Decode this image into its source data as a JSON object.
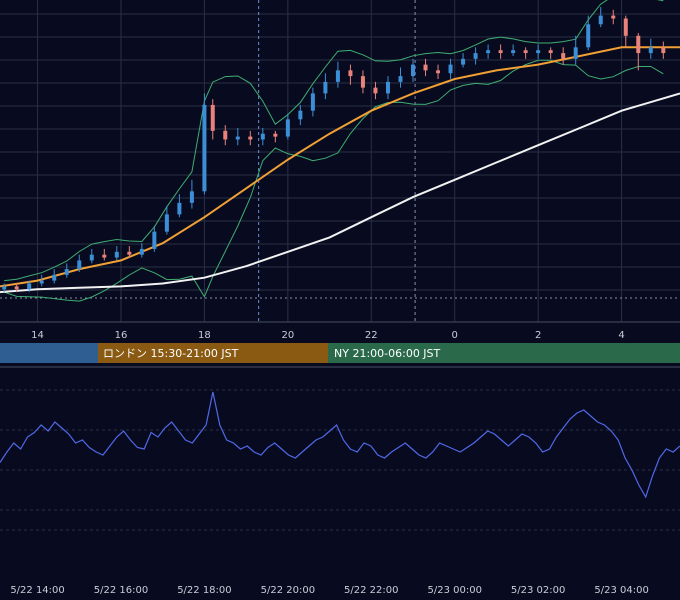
{
  "colors": {
    "background": "#080b1f",
    "grid": "#2a2f45",
    "up_candle": "#3c8fd6",
    "down_candle": "#e8827a",
    "ma_fast": "#f0a035",
    "ma_slow": "#f2f2f2",
    "bollinger": "#3fae72",
    "oscillator": "#5068e8",
    "session_tokyo": "#2f5f92",
    "session_london": "#8a5a12",
    "session_ny": "#2a6a4a"
  },
  "sessions": [
    {
      "label": ""
    },
    {
      "label": "ロンドン 15:30-21:00 JST"
    },
    {
      "label": "NY 21:00-06:00 JST"
    }
  ],
  "chart_data": [
    {
      "type": "candlestick",
      "x_tick_labels": [
        "14",
        "16",
        "18",
        "20",
        "22",
        "0",
        "2",
        "4"
      ],
      "x_hours": [
        14,
        16,
        18,
        20,
        22,
        24,
        26,
        28
      ],
      "x_range_hours": [
        13.1,
        29.4
      ],
      "y_range": [
        0,
        100
      ],
      "grid": true,
      "candles": [
        {
          "h": 13.2,
          "o": 2,
          "c": 3,
          "hi": 4,
          "lo": 1
        },
        {
          "h": 13.5,
          "o": 3,
          "c": 2,
          "hi": 4,
          "lo": 1
        },
        {
          "h": 13.8,
          "o": 2,
          "c": 4,
          "hi": 5,
          "lo": 1
        },
        {
          "h": 14.1,
          "o": 4,
          "c": 5,
          "hi": 7,
          "lo": 3
        },
        {
          "h": 14.4,
          "o": 5,
          "c": 7,
          "hi": 9,
          "lo": 4
        },
        {
          "h": 14.7,
          "o": 7,
          "c": 9,
          "hi": 11,
          "lo": 6
        },
        {
          "h": 15.0,
          "o": 9,
          "c": 12,
          "hi": 14,
          "lo": 8
        },
        {
          "h": 15.3,
          "o": 12,
          "c": 14,
          "hi": 16,
          "lo": 11
        },
        {
          "h": 15.6,
          "o": 14,
          "c": 13,
          "hi": 16,
          "lo": 12
        },
        {
          "h": 15.9,
          "o": 13,
          "c": 15,
          "hi": 17,
          "lo": 12
        },
        {
          "h": 16.2,
          "o": 15,
          "c": 14,
          "hi": 17,
          "lo": 13
        },
        {
          "h": 16.5,
          "o": 14,
          "c": 16,
          "hi": 18,
          "lo": 13
        },
        {
          "h": 16.8,
          "o": 16,
          "c": 22,
          "hi": 24,
          "lo": 15
        },
        {
          "h": 17.1,
          "o": 22,
          "c": 28,
          "hi": 31,
          "lo": 21
        },
        {
          "h": 17.4,
          "o": 28,
          "c": 32,
          "hi": 35,
          "lo": 27
        },
        {
          "h": 17.7,
          "o": 32,
          "c": 36,
          "hi": 40,
          "lo": 30
        },
        {
          "h": 18.0,
          "o": 36,
          "c": 66,
          "hi": 70,
          "lo": 35
        },
        {
          "h": 18.2,
          "o": 66,
          "c": 57,
          "hi": 68,
          "lo": 54
        },
        {
          "h": 18.5,
          "o": 57,
          "c": 54,
          "hi": 59,
          "lo": 52
        },
        {
          "h": 18.8,
          "o": 54,
          "c": 55,
          "hi": 58,
          "lo": 52
        },
        {
          "h": 19.1,
          "o": 55,
          "c": 54,
          "hi": 57,
          "lo": 52
        },
        {
          "h": 19.4,
          "o": 54,
          "c": 56,
          "hi": 58,
          "lo": 52
        },
        {
          "h": 19.7,
          "o": 56,
          "c": 55,
          "hi": 57,
          "lo": 53
        },
        {
          "h": 20.0,
          "o": 55,
          "c": 61,
          "hi": 63,
          "lo": 54
        },
        {
          "h": 20.3,
          "o": 61,
          "c": 64,
          "hi": 66,
          "lo": 59
        },
        {
          "h": 20.6,
          "o": 64,
          "c": 70,
          "hi": 72,
          "lo": 62
        },
        {
          "h": 20.9,
          "o": 70,
          "c": 74,
          "hi": 77,
          "lo": 68
        },
        {
          "h": 21.2,
          "o": 74,
          "c": 78,
          "hi": 81,
          "lo": 72
        },
        {
          "h": 21.5,
          "o": 78,
          "c": 76,
          "hi": 80,
          "lo": 73
        },
        {
          "h": 21.8,
          "o": 76,
          "c": 72,
          "hi": 78,
          "lo": 70
        },
        {
          "h": 22.1,
          "o": 72,
          "c": 70,
          "hi": 74,
          "lo": 68
        },
        {
          "h": 22.4,
          "o": 70,
          "c": 74,
          "hi": 76,
          "lo": 68
        },
        {
          "h": 22.7,
          "o": 74,
          "c": 76,
          "hi": 79,
          "lo": 72
        },
        {
          "h": 23.0,
          "o": 76,
          "c": 80,
          "hi": 82,
          "lo": 74
        },
        {
          "h": 23.3,
          "o": 80,
          "c": 78,
          "hi": 82,
          "lo": 76
        },
        {
          "h": 23.6,
          "o": 78,
          "c": 77,
          "hi": 80,
          "lo": 75
        },
        {
          "h": 23.9,
          "o": 77,
          "c": 80,
          "hi": 82,
          "lo": 75
        },
        {
          "h": 24.2,
          "o": 80,
          "c": 82,
          "hi": 84,
          "lo": 79
        },
        {
          "h": 24.5,
          "o": 82,
          "c": 84,
          "hi": 86,
          "lo": 80
        },
        {
          "h": 24.8,
          "o": 84,
          "c": 85,
          "hi": 87,
          "lo": 82
        },
        {
          "h": 25.1,
          "o": 85,
          "c": 84,
          "hi": 87,
          "lo": 82
        },
        {
          "h": 25.4,
          "o": 84,
          "c": 85,
          "hi": 87,
          "lo": 83
        },
        {
          "h": 25.7,
          "o": 85,
          "c": 84,
          "hi": 86,
          "lo": 82
        },
        {
          "h": 26.0,
          "o": 84,
          "c": 85,
          "hi": 87,
          "lo": 82
        },
        {
          "h": 26.3,
          "o": 85,
          "c": 84,
          "hi": 86,
          "lo": 82
        },
        {
          "h": 26.6,
          "o": 84,
          "c": 82,
          "hi": 86,
          "lo": 80
        },
        {
          "h": 26.9,
          "o": 82,
          "c": 86,
          "hi": 90,
          "lo": 80
        },
        {
          "h": 27.2,
          "o": 86,
          "c": 94,
          "hi": 97,
          "lo": 85
        },
        {
          "h": 27.5,
          "o": 94,
          "c": 97,
          "hi": 100,
          "lo": 93
        },
        {
          "h": 27.8,
          "o": 97,
          "c": 96,
          "hi": 99,
          "lo": 94
        },
        {
          "h": 28.1,
          "o": 96,
          "c": 90,
          "hi": 97,
          "lo": 86
        },
        {
          "h": 28.4,
          "o": 90,
          "c": 84,
          "hi": 91,
          "lo": 78
        },
        {
          "h": 28.7,
          "o": 84,
          "c": 86,
          "hi": 89,
          "lo": 82
        },
        {
          "h": 29.0,
          "o": 86,
          "c": 84,
          "hi": 88,
          "lo": 82
        }
      ],
      "ma_fast": [
        [
          13.1,
          3
        ],
        [
          14,
          5
        ],
        [
          15,
          9
        ],
        [
          16,
          12
        ],
        [
          17,
          18
        ],
        [
          18,
          27
        ],
        [
          19,
          37
        ],
        [
          20,
          47
        ],
        [
          21,
          56
        ],
        [
          22,
          64
        ],
        [
          23,
          70
        ],
        [
          24,
          75
        ],
        [
          25,
          78
        ],
        [
          26,
          80
        ],
        [
          27,
          83
        ],
        [
          28,
          86
        ],
        [
          29.4,
          86
        ]
      ],
      "ma_slow": [
        [
          13.1,
          1
        ],
        [
          14,
          2
        ],
        [
          15,
          2.5
        ],
        [
          16,
          3
        ],
        [
          17,
          4
        ],
        [
          18,
          6
        ],
        [
          19,
          10
        ],
        [
          20,
          15
        ],
        [
          21,
          20
        ],
        [
          22,
          27
        ],
        [
          23,
          34
        ],
        [
          24,
          40
        ],
        [
          25,
          46
        ],
        [
          26,
          52
        ],
        [
          27,
          58
        ],
        [
          28,
          64
        ],
        [
          29.4,
          70
        ]
      ]
    },
    {
      "type": "line",
      "x_tick_labels": [
        "5/22 14:00",
        "5/22 16:00",
        "5/22 18:00",
        "5/22 20:00",
        "5/22 22:00",
        "5/23 00:00",
        "5/23 02:00",
        "5/23 04:00"
      ],
      "y_range": [
        0,
        100
      ],
      "grid": true,
      "values": [
        45,
        52,
        58,
        54,
        62,
        65,
        70,
        66,
        72,
        68,
        64,
        58,
        60,
        55,
        52,
        50,
        56,
        62,
        66,
        60,
        55,
        54,
        65,
        62,
        68,
        72,
        66,
        60,
        58,
        64,
        70,
        92,
        70,
        60,
        58,
        54,
        56,
        52,
        50,
        55,
        58,
        54,
        50,
        48,
        52,
        56,
        60,
        62,
        66,
        70,
        60,
        54,
        52,
        58,
        56,
        50,
        48,
        52,
        55,
        58,
        54,
        50,
        48,
        52,
        58,
        56,
        54,
        52,
        55,
        58,
        62,
        66,
        64,
        60,
        56,
        60,
        64,
        62,
        58,
        52,
        54,
        62,
        68,
        74,
        78,
        80,
        76,
        72,
        70,
        66,
        60,
        48,
        40,
        30,
        22,
        36,
        48,
        54,
        52,
        56
      ]
    }
  ]
}
